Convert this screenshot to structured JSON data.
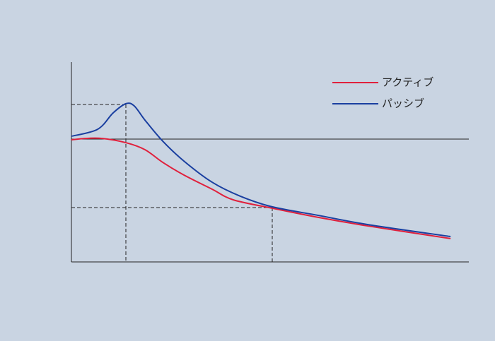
{
  "chart_data": {
    "type": "line",
    "xlim": [
      0,
      100
    ],
    "ylim": [
      0,
      100
    ],
    "legend": "top-right",
    "series": [
      {
        "name": "アクティブ",
        "color": "#e0203c",
        "x": [
          0,
          3.4,
          7.8,
          13.7,
          18.5,
          23.0,
          28.3,
          35.4,
          40.7,
          50.5,
          62.1,
          74.6,
          95.4
        ],
        "values": [
          61.1,
          61.8,
          61.8,
          59.7,
          56.2,
          49.8,
          43.5,
          36.4,
          31.1,
          26.9,
          22.3,
          18.0,
          11.7
        ]
      },
      {
        "name": "パッシブ",
        "color": "#1a3fa0",
        "x": [
          0,
          6.6,
          10.5,
          13.7,
          15.8,
          18.5,
          23.0,
          28.3,
          35.4,
          42.5,
          50.5,
          62.1,
          74.6,
          95.4
        ],
        "values": [
          62.9,
          66.4,
          74.6,
          79.2,
          78.1,
          71.0,
          60.4,
          50.5,
          39.9,
          32.9,
          27.6,
          23.3,
          18.7,
          12.7
        ]
      }
    ]
  }
}
